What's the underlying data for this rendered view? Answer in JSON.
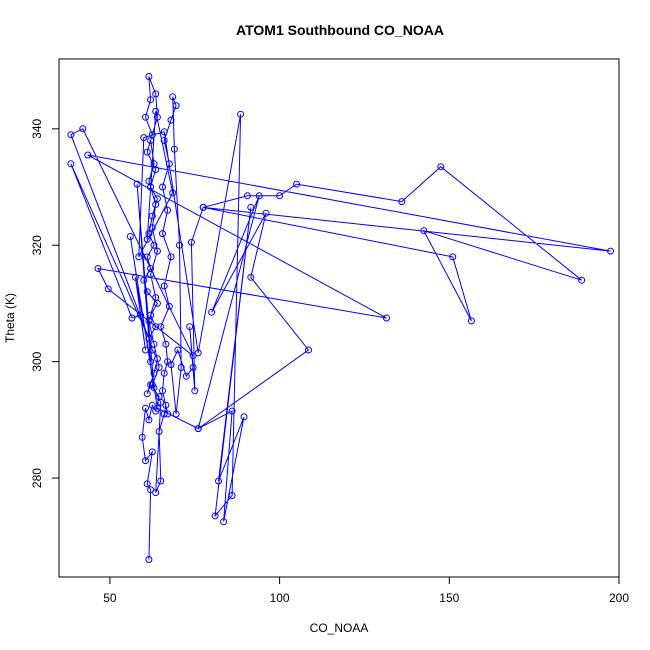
{
  "chart_data": {
    "type": "line",
    "title": "ATOM1 Southbound CO_NOAA",
    "xlabel": "CO_NOAA",
    "ylabel": "Theta (K)",
    "xlim": [
      35,
      200
    ],
    "ylim": [
      263,
      352
    ],
    "xticks": [
      50,
      100,
      150,
      200
    ],
    "yticks": [
      280,
      300,
      320,
      340
    ],
    "grid": false,
    "legend": "none",
    "colors": {
      "series": "#0000ff",
      "axis": "#000000"
    },
    "series": [
      {
        "marker": "open-circle",
        "points": [
          [
            61.5,
            266.0
          ],
          [
            62.0,
            278.0
          ],
          [
            61.0,
            279.0
          ],
          [
            62.5,
            284.5
          ],
          [
            60.5,
            283.0
          ],
          [
            59.5,
            287.0
          ],
          [
            60.5,
            292.0
          ],
          [
            61.5,
            290.0
          ],
          [
            62.5,
            292.5
          ],
          [
            63.5,
            291.5
          ],
          [
            64.5,
            294.0
          ],
          [
            62.0,
            296.0
          ],
          [
            61.0,
            294.5
          ],
          [
            63.0,
            298.0
          ],
          [
            64.0,
            300.5
          ],
          [
            62.5,
            302.0
          ],
          [
            61.5,
            304.0
          ],
          [
            63.5,
            306.0
          ],
          [
            62.0,
            308.0
          ],
          [
            64.0,
            310.0
          ],
          [
            61.0,
            312.0
          ],
          [
            60.0,
            314.0
          ],
          [
            62.0,
            316.0
          ],
          [
            61.0,
            318.0
          ],
          [
            63.0,
            320.0
          ],
          [
            61.5,
            322.0
          ],
          [
            62.5,
            325.0
          ],
          [
            64.0,
            328.0
          ],
          [
            62.0,
            330.0
          ],
          [
            63.5,
            333.0
          ],
          [
            61.0,
            336.0
          ],
          [
            62.5,
            339.0
          ],
          [
            60.5,
            342.0
          ],
          [
            62.0,
            345.0
          ],
          [
            61.5,
            349.0
          ],
          [
            63.5,
            346.0
          ],
          [
            64.0,
            342.0
          ],
          [
            62.0,
            338.0
          ],
          [
            63.0,
            334.0
          ],
          [
            61.5,
            331.0
          ],
          [
            63.5,
            327.0
          ],
          [
            62.5,
            323.0
          ],
          [
            64.0,
            319.0
          ],
          [
            62.0,
            315.0
          ],
          [
            63.5,
            311.0
          ],
          [
            61.5,
            307.0
          ],
          [
            63.0,
            303.0
          ],
          [
            64.5,
            299.0
          ],
          [
            62.5,
            296.0
          ],
          [
            65.0,
            293.0
          ],
          [
            63.5,
            277.5
          ],
          [
            65.0,
            279.5
          ],
          [
            64.5,
            288.0
          ],
          [
            66.0,
            291.0
          ],
          [
            66.5,
            292.5
          ],
          [
            67.0,
            291.0
          ],
          [
            65.5,
            295.0
          ],
          [
            66.0,
            298.0
          ],
          [
            67.0,
            300.0
          ],
          [
            66.5,
            303.0
          ],
          [
            65.0,
            306.0
          ],
          [
            67.5,
            309.5
          ],
          [
            66.0,
            313.0
          ],
          [
            68.0,
            318.0
          ],
          [
            65.5,
            322.0
          ],
          [
            67.0,
            326.0
          ],
          [
            65.5,
            330.0
          ],
          [
            67.5,
            334.0
          ],
          [
            66.0,
            338.0
          ],
          [
            68.0,
            341.5
          ],
          [
            69.5,
            344.0
          ],
          [
            68.5,
            345.5
          ],
          [
            69.0,
            336.5
          ],
          [
            70.5,
            320.0
          ],
          [
            71.0,
            299.0
          ],
          [
            69.5,
            291.0
          ],
          [
            68.0,
            299.5
          ],
          [
            70.0,
            302.0
          ],
          [
            72.5,
            297.5
          ],
          [
            74.5,
            299.0
          ],
          [
            73.5,
            306.0
          ],
          [
            75.0,
            295.0
          ],
          [
            74.0,
            320.5
          ],
          [
            77.5,
            326.5
          ],
          [
            90.5,
            328.5
          ],
          [
            100.0,
            328.5
          ],
          [
            105.0,
            330.5
          ],
          [
            136.0,
            327.5
          ],
          [
            147.5,
            333.5
          ],
          [
            189.0,
            314.0
          ],
          [
            142.5,
            322.5
          ],
          [
            156.5,
            307.0
          ],
          [
            151.0,
            318.0
          ],
          [
            77.5,
            326.5
          ],
          [
            197.5,
            319.0
          ],
          [
            43.5,
            335.5
          ],
          [
            131.5,
            307.5
          ],
          [
            46.5,
            316.0
          ],
          [
            49.5,
            312.5
          ],
          [
            74.5,
            301.0
          ],
          [
            42.0,
            340.0
          ],
          [
            38.5,
            339.0
          ],
          [
            61.5,
            304.0
          ],
          [
            38.5,
            334.0
          ],
          [
            56.5,
            307.5
          ],
          [
            59.0,
            308.0
          ],
          [
            60.5,
            302.0
          ],
          [
            57.5,
            314.5
          ],
          [
            62.0,
            300.0
          ],
          [
            58.0,
            330.5
          ],
          [
            63.0,
            295.5
          ],
          [
            56.0,
            321.5
          ],
          [
            64.0,
            292.0
          ],
          [
            76.0,
            288.5
          ],
          [
            94.0,
            328.5
          ],
          [
            80.0,
            308.5
          ],
          [
            96.0,
            325.5
          ],
          [
            91.5,
            314.5
          ],
          [
            108.5,
            302.0
          ],
          [
            76.0,
            288.5
          ],
          [
            86.0,
            291.5
          ],
          [
            83.5,
            272.5
          ],
          [
            89.5,
            290.5
          ],
          [
            82.0,
            279.5
          ],
          [
            91.5,
            326.5
          ],
          [
            81.0,
            273.5
          ],
          [
            86.0,
            277.0
          ],
          [
            88.5,
            342.5
          ],
          [
            76.0,
            301.5
          ],
          [
            66.0,
            339.5
          ],
          [
            60.0,
            338.5
          ],
          [
            58.5,
            318.0
          ],
          [
            68.5,
            329.0
          ],
          [
            63.5,
            343.0
          ],
          [
            61.0,
            321.0
          ]
        ]
      }
    ]
  }
}
